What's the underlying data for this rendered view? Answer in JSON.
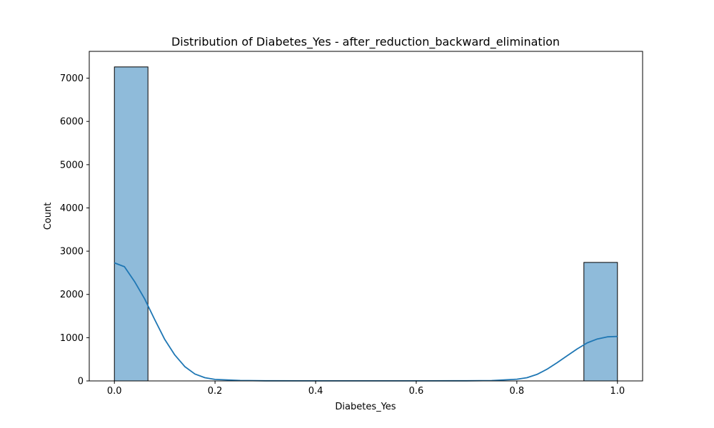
{
  "chart_data": {
    "type": "bar",
    "title": "Distribution of Diabetes_Yes - after_reduction_backward_elimination",
    "xlabel": "Diabetes_Yes",
    "ylabel": "Count",
    "xlim": [
      -0.05,
      1.05
    ],
    "ylim": [
      0,
      7620
    ],
    "xticks": [
      "0.0",
      "0.2",
      "0.4",
      "0.6",
      "0.8",
      "1.0"
    ],
    "yticks": [
      "0",
      "1000",
      "2000",
      "3000",
      "4000",
      "5000",
      "6000",
      "7000"
    ],
    "bins": [
      {
        "x0": 0.0,
        "x1": 0.0667,
        "count": 7260
      },
      {
        "x0": 0.9333,
        "x1": 1.0,
        "count": 2740
      }
    ],
    "kde": {
      "x": [
        0.0,
        0.02,
        0.04,
        0.06,
        0.08,
        0.1,
        0.12,
        0.14,
        0.16,
        0.18,
        0.2,
        0.25,
        0.3,
        0.4,
        0.5,
        0.6,
        0.7,
        0.75,
        0.8,
        0.82,
        0.84,
        0.86,
        0.88,
        0.9,
        0.92,
        0.94,
        0.96,
        0.98,
        1.0
      ],
      "y": [
        2730,
        2640,
        2300,
        1900,
        1420,
        960,
        600,
        330,
        160,
        75,
        35,
        10,
        3,
        1,
        1,
        1,
        3,
        8,
        40,
        75,
        150,
        270,
        420,
        580,
        740,
        880,
        970,
        1020,
        1030
      ]
    },
    "colors": {
      "bar_fill": "#8fbbda",
      "bar_edge": "#000000",
      "kde_line": "#1f77b4"
    },
    "grid": false,
    "legend": "none"
  }
}
